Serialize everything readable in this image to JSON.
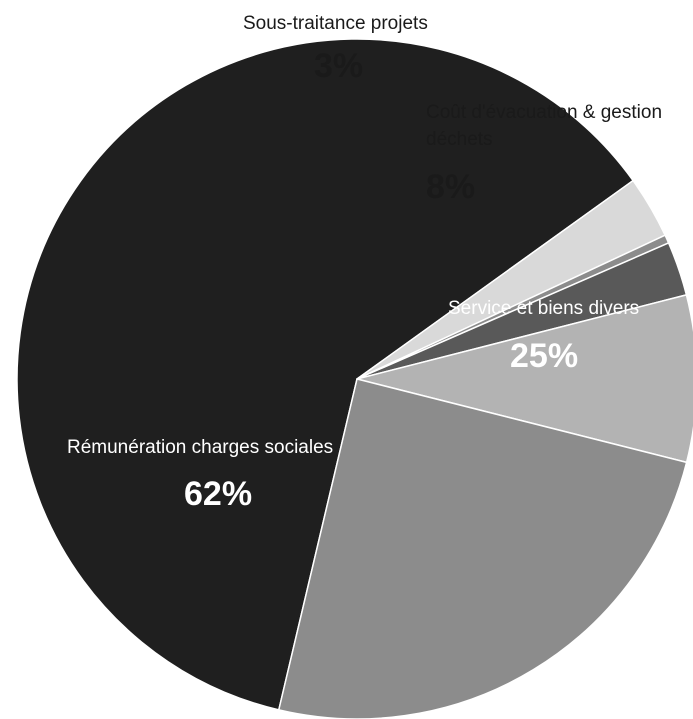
{
  "chart_data": {
    "type": "pie",
    "title": "",
    "slices": [
      {
        "label": "Rémunération charges sociales",
        "value": 62,
        "value_label": "62%",
        "color": "#1f1f1f",
        "text_color": "#ffffff"
      },
      {
        "label": "Sous-traitance projets",
        "value": 3,
        "value_label": "3%",
        "color": "#d9d9d9",
        "text_color": "#1a1a1a"
      },
      {
        "label": "",
        "value": 0.4,
        "value_label": "",
        "color": "#8c8c8c",
        "text_color": "#1a1a1a"
      },
      {
        "label": "",
        "value": 2.6,
        "value_label": "",
        "color": "#595959",
        "text_color": "#1a1a1a"
      },
      {
        "label": "Coût d'évacuation & gestion déchets",
        "value": 8,
        "value_label": "8%",
        "color": "#b3b3b3",
        "text_color": "#1a1a1a"
      },
      {
        "label": "Service et biens divers",
        "value": 25,
        "value_label": "25%",
        "color": "#8c8c8c",
        "text_color": "#ffffff"
      }
    ],
    "slice_border_color": "#ffffff"
  }
}
